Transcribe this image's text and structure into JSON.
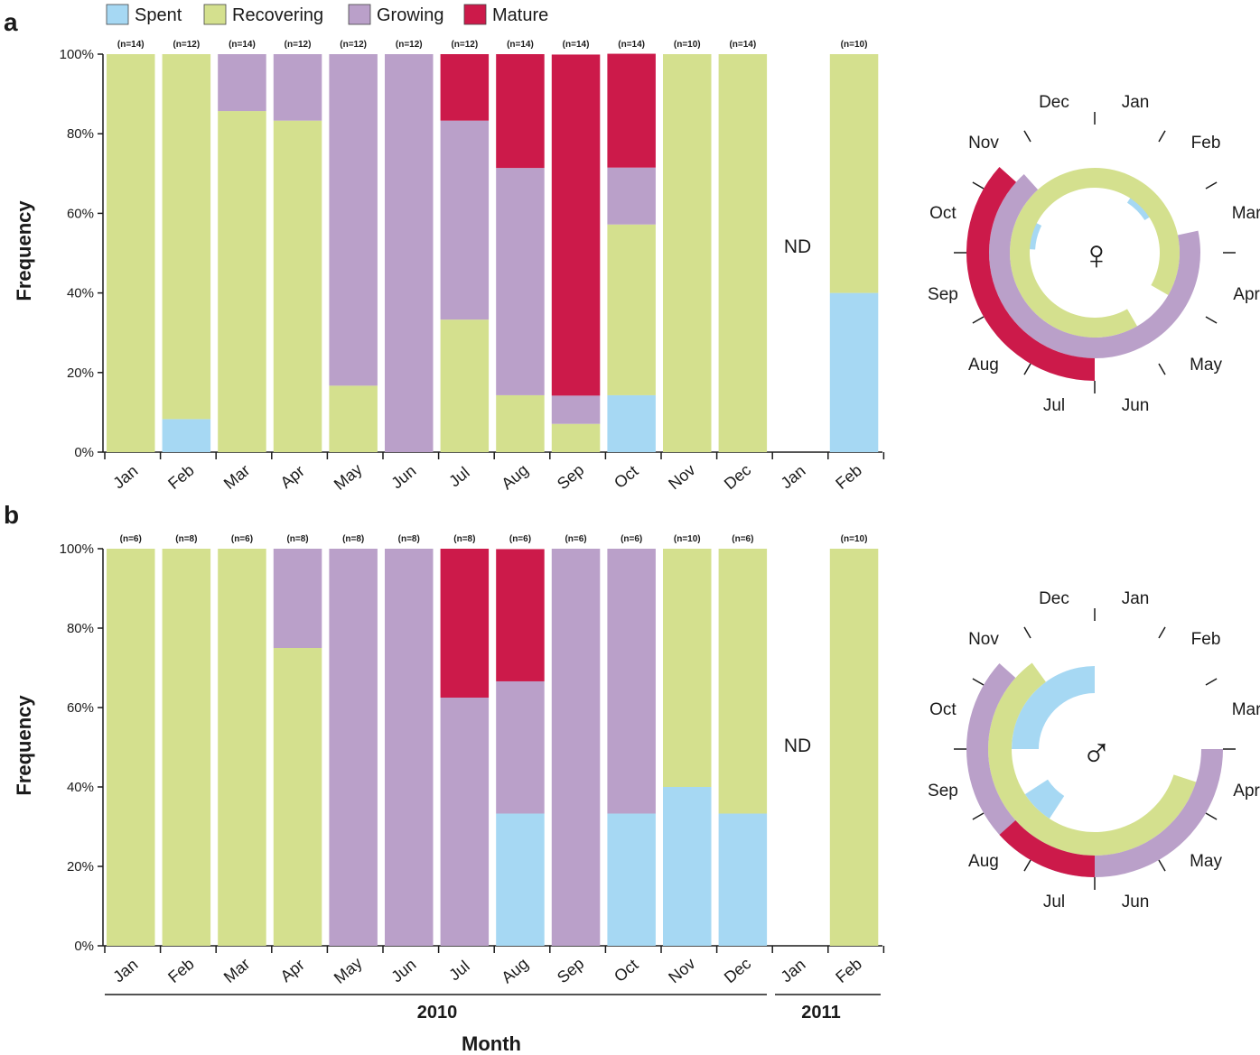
{
  "legend": {
    "items": [
      {
        "key": "spent",
        "label": "Spent",
        "color": "#a6d8f3"
      },
      {
        "key": "recovering",
        "label": "Recovering",
        "color": "#d4e08e"
      },
      {
        "key": "growing",
        "label": "Growing",
        "color": "#baa0c9"
      },
      {
        "key": "mature",
        "label": "Mature",
        "color": "#cc1a4a"
      }
    ]
  },
  "colors": {
    "spent": "#a6d8f3",
    "recovering": "#d4e08e",
    "growing": "#baa0c9",
    "mature": "#cc1a4a"
  },
  "shared": {
    "ylabel": "Frequency",
    "yticks": [
      "0%",
      "20%",
      "40%",
      "60%",
      "80%",
      "100%"
    ],
    "xlabel": "Month",
    "years": [
      "2010",
      "2011"
    ],
    "nd_label": "ND"
  },
  "chart_data": [
    {
      "type": "bar",
      "stacked": true,
      "panel": "a",
      "ylabel": "Frequency",
      "ylim": [
        0,
        100
      ],
      "categories": [
        "Jan",
        "Feb",
        "Mar",
        "Apr",
        "May",
        "Jun",
        "Jul",
        "Aug",
        "Sep",
        "Oct",
        "Nov",
        "Dec",
        "Jan",
        "Feb"
      ],
      "n_labels": [
        "(n=14)",
        "(n=12)",
        "(n=14)",
        "(n=12)",
        "(n=12)",
        "(n=12)",
        "(n=12)",
        "(n=14)",
        "(n=14)",
        "(n=14)",
        "(n=10)",
        "(n=14)",
        "",
        "(n=10)"
      ],
      "series": [
        {
          "name": "Spent",
          "values": [
            0,
            8.3,
            0,
            0,
            0,
            0,
            0,
            0,
            0,
            14.3,
            0,
            0,
            null,
            40
          ]
        },
        {
          "name": "Recovering",
          "values": [
            100,
            91.7,
            85.7,
            83.3,
            16.7,
            0,
            33.3,
            14.3,
            7.1,
            42.9,
            100,
            100,
            null,
            60
          ]
        },
        {
          "name": "Growing",
          "values": [
            0,
            0,
            14.3,
            16.7,
            83.3,
            100,
            50,
            57.1,
            7.1,
            14.3,
            0,
            0,
            null,
            0
          ]
        },
        {
          "name": "Mature",
          "values": [
            0,
            0,
            0,
            0,
            0,
            0,
            16.7,
            28.6,
            85.7,
            28.6,
            0,
            0,
            null,
            0
          ]
        }
      ],
      "annotations": [
        "ND"
      ]
    },
    {
      "type": "bar",
      "stacked": true,
      "panel": "b",
      "ylabel": "Frequency",
      "xlabel": "Month",
      "ylim": [
        0,
        100
      ],
      "categories": [
        "Jan",
        "Feb",
        "Mar",
        "Apr",
        "May",
        "Jun",
        "Jul",
        "Aug",
        "Sep",
        "Oct",
        "Nov",
        "Dec",
        "Jan",
        "Feb"
      ],
      "n_labels": [
        "(n=6)",
        "(n=8)",
        "(n=6)",
        "(n=8)",
        "(n=8)",
        "(n=8)",
        "(n=8)",
        "(n=6)",
        "(n=6)",
        "(n=6)",
        "(n=10)",
        "(n=6)",
        "",
        "(n=10)"
      ],
      "series": [
        {
          "name": "Spent",
          "values": [
            0,
            0,
            0,
            0,
            0,
            0,
            0,
            33.3,
            0,
            33.3,
            40,
            33.3,
            null,
            0
          ]
        },
        {
          "name": "Recovering",
          "values": [
            100,
            100,
            100,
            75,
            0,
            0,
            0,
            0,
            0,
            0,
            60,
            66.7,
            null,
            100
          ]
        },
        {
          "name": "Growing",
          "values": [
            0,
            0,
            0,
            25,
            100,
            100,
            62.5,
            33.3,
            100,
            66.7,
            0,
            0,
            null,
            0
          ]
        },
        {
          "name": "Mature",
          "values": [
            0,
            0,
            0,
            0,
            0,
            0,
            37.5,
            33.3,
            0,
            0,
            0,
            0,
            null,
            0
          ]
        }
      ],
      "annotations": [
        "ND"
      ]
    },
    {
      "type": "radial",
      "panel": "a",
      "symbol": "♀",
      "months": [
        "Jan",
        "Feb",
        "Mar",
        "Apr",
        "May",
        "Jun",
        "Jul",
        "Aug",
        "Sep",
        "Oct",
        "Nov",
        "Dec"
      ],
      "rings": [
        {
          "stage": "Spent",
          "arcs": [
            [
              1.1,
              1.9
            ],
            [
              9.1,
              9.9
            ]
          ]
        },
        {
          "stage": "Recovering",
          "arcs": [
            [
              5.0,
              16.0
            ]
          ]
        },
        {
          "stage": "Growing",
          "arcs": [
            [
              2.6,
              10.6
            ]
          ]
        },
        {
          "stage": "Mature",
          "arcs": [
            [
              6.0,
              10.4
            ]
          ]
        }
      ]
    },
    {
      "type": "radial",
      "panel": "b",
      "symbol": "♂",
      "months": [
        "Jan",
        "Feb",
        "Mar",
        "Apr",
        "May",
        "Jun",
        "Jul",
        "Aug",
        "Sep",
        "Oct",
        "Nov",
        "Dec"
      ],
      "rings": [
        {
          "stage": "Spent",
          "arcs": [
            [
              7.1,
              7.9
            ],
            [
              9.0,
              12.0
            ]
          ]
        },
        {
          "stage": "Recovering",
          "arcs": [
            [
              3.6,
              10.8
            ]
          ]
        },
        {
          "stage": "Growing",
          "arcs": [
            [
              3.0,
              10.4
            ]
          ]
        },
        {
          "stage": "Mature",
          "arcs": [
            [
              6.0,
              7.6
            ]
          ]
        }
      ]
    }
  ]
}
